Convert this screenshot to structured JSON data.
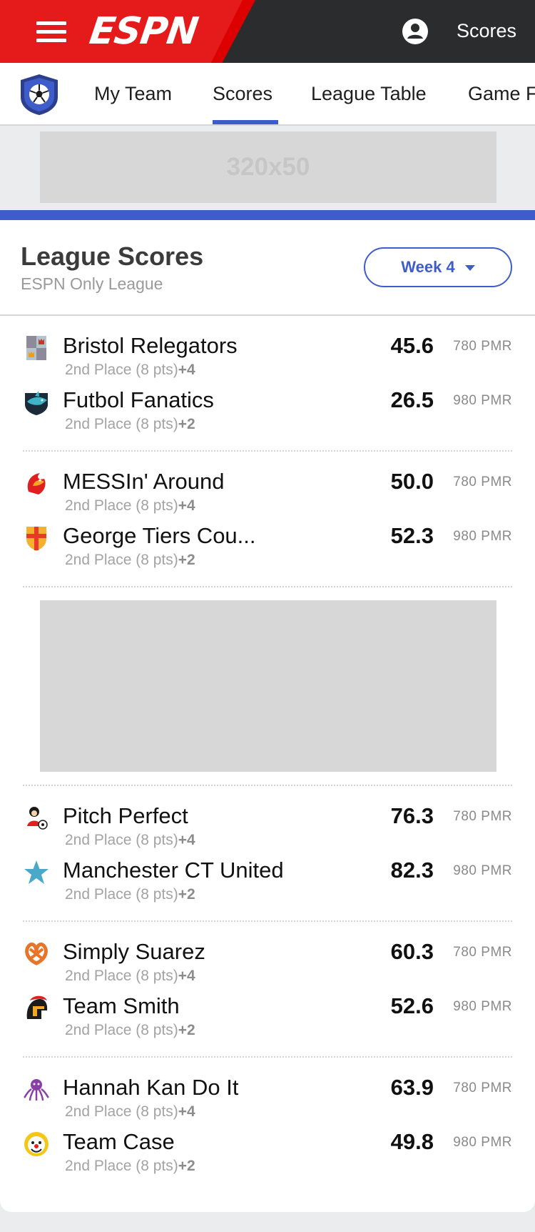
{
  "header": {
    "logo_text": "ESPN",
    "right_label": "Scores",
    "brand_red": "#e51b1b",
    "bar_color": "#2b2c2d"
  },
  "subnav": {
    "tabs": [
      {
        "label": "My Team"
      },
      {
        "label": "Scores",
        "active": true
      },
      {
        "label": "League Table"
      },
      {
        "label": "Game F"
      }
    ],
    "accent": "#3f5ccb"
  },
  "ad_top": {
    "label": "320x50"
  },
  "scores": {
    "title": "League Scores",
    "subtitle": "ESPN Only League",
    "week_label": "Week 4",
    "matchups": [
      {
        "teams": [
          {
            "name": "Bristol Relegators",
            "standing": "2nd Place (8 pts)",
            "change": "+4",
            "score": "45.6",
            "pmr": "780 PMR",
            "icon": "castle-crest-icon"
          },
          {
            "name": "Futbol Fanatics",
            "standing": "2nd Place (8 pts)",
            "change": "+2",
            "score": "26.5",
            "pmr": "980 PMR",
            "icon": "shark-crest-icon"
          }
        ]
      },
      {
        "teams": [
          {
            "name": "MESSIn' Around",
            "standing": "2nd Place (8 pts)",
            "change": "+4",
            "score": "50.0",
            "pmr": "780 PMR",
            "icon": "rooster-crest-icon"
          },
          {
            "name": "George Tiers Cou...",
            "standing": "2nd Place (8 pts)",
            "change": "+2",
            "score": "52.3",
            "pmr": "980 PMR",
            "icon": "cross-shield-icon"
          }
        ]
      },
      {
        "teams": [
          {
            "name": "Pitch Perfect",
            "standing": "2nd Place (8 pts)",
            "change": "+4",
            "score": "76.3",
            "pmr": "780 PMR",
            "icon": "mascot-ball-icon"
          },
          {
            "name": "Manchester CT United",
            "standing": "2nd Place (8 pts)",
            "change": "+2",
            "score": "82.3",
            "pmr": "980 PMR",
            "icon": "star-icon"
          }
        ]
      },
      {
        "teams": [
          {
            "name": "Simply Suarez",
            "standing": "2nd Place (8 pts)",
            "change": "+4",
            "score": "60.3",
            "pmr": "780 PMR",
            "icon": "pretzel-icon"
          },
          {
            "name": "Team Smith",
            "standing": "2nd Place (8 pts)",
            "change": "+2",
            "score": "52.6",
            "pmr": "980 PMR",
            "icon": "spartan-helmet-icon"
          }
        ]
      },
      {
        "teams": [
          {
            "name": "Hannah Kan Do It",
            "standing": "2nd Place (8 pts)",
            "change": "+4",
            "score": "63.9",
            "pmr": "780 PMR",
            "icon": "octopus-icon"
          },
          {
            "name": "Team Case",
            "standing": "2nd Place (8 pts)",
            "change": "+2",
            "score": "49.8",
            "pmr": "980 PMR",
            "icon": "clown-face-icon"
          }
        ]
      }
    ]
  }
}
